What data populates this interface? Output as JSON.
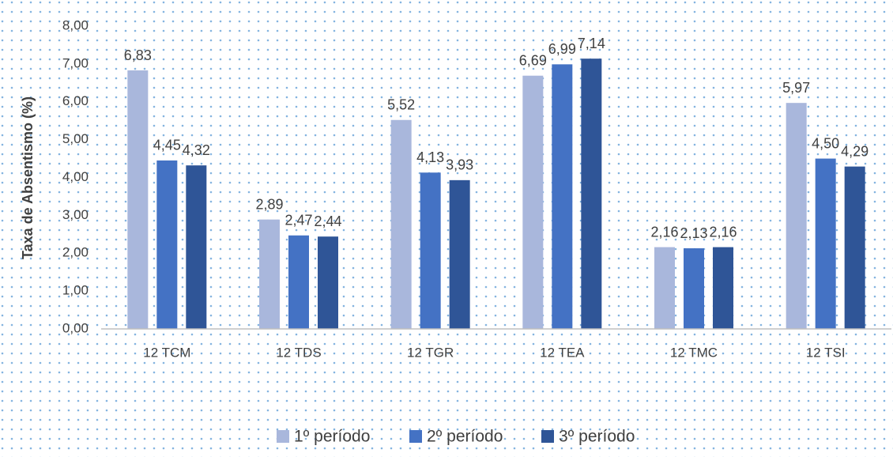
{
  "chart_data": {
    "type": "bar",
    "y_label": "Taxa de Absentismo (%)",
    "categories": [
      "12 TCM",
      "12 TDS",
      "12 TGR",
      "12 TEA",
      "12 TMC",
      "12 TSI"
    ],
    "series": [
      {
        "name": "1º período",
        "color": "#a9b7dc",
        "values": [
          6.83,
          2.89,
          5.52,
          6.69,
          2.16,
          5.97
        ],
        "value_labels": [
          "6,83",
          "2,89",
          "5,52",
          "6,69",
          "2,16",
          "5,97"
        ]
      },
      {
        "name": "2º período",
        "color": "#4472c4",
        "values": [
          4.45,
          2.47,
          4.13,
          6.99,
          2.13,
          4.5
        ],
        "value_labels": [
          "4,45",
          "2,47",
          "4,13",
          "6,99",
          "2,13",
          "4,50"
        ]
      },
      {
        "name": "3º período",
        "color": "#2f5597",
        "values": [
          4.32,
          2.44,
          3.93,
          7.14,
          2.16,
          4.29
        ],
        "value_labels": [
          "4,32",
          "2,44",
          "3,93",
          "7,14",
          "2,16",
          "4,29"
        ]
      }
    ],
    "ylim": [
      0,
      8
    ],
    "yticks": [
      {
        "value": 0,
        "label": "0,00"
      },
      {
        "value": 1,
        "label": "1,00"
      },
      {
        "value": 2,
        "label": "2,00"
      },
      {
        "value": 3,
        "label": "3,00"
      },
      {
        "value": 4,
        "label": "4,00"
      },
      {
        "value": 5,
        "label": "5,00"
      },
      {
        "value": 6,
        "label": "6,00"
      },
      {
        "value": 7,
        "label": "7,00"
      },
      {
        "value": 8,
        "label": "8,00"
      }
    ],
    "legend": "bottom"
  }
}
